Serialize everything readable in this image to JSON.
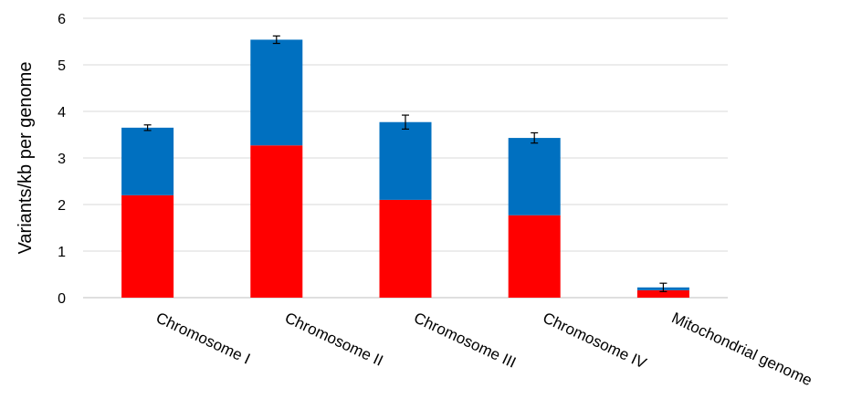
{
  "chart_data": {
    "type": "bar",
    "stacked": true,
    "categories": [
      "Chromosome I",
      "Chromosome II",
      "Chromosome III",
      "Chromosome IV",
      "Mitochondrial genome"
    ],
    "series": [
      {
        "color": "#ff0000",
        "values": [
          2.2,
          3.27,
          2.1,
          1.77,
          0.16
        ]
      },
      {
        "color": "#0070c0",
        "values": [
          1.45,
          2.27,
          1.67,
          1.66,
          0.06
        ]
      }
    ],
    "totals": [
      3.65,
      5.54,
      3.77,
      3.43,
      0.22
    ],
    "error_bars": [
      0.06,
      0.08,
      0.15,
      0.11,
      0.09
    ],
    "xlabel": "",
    "ylabel": "Variants/kb per genome",
    "ylim": [
      0,
      6
    ],
    "yticks": [
      "0",
      "1",
      "2",
      "3",
      "4",
      "5",
      "6"
    ],
    "grid": true
  }
}
